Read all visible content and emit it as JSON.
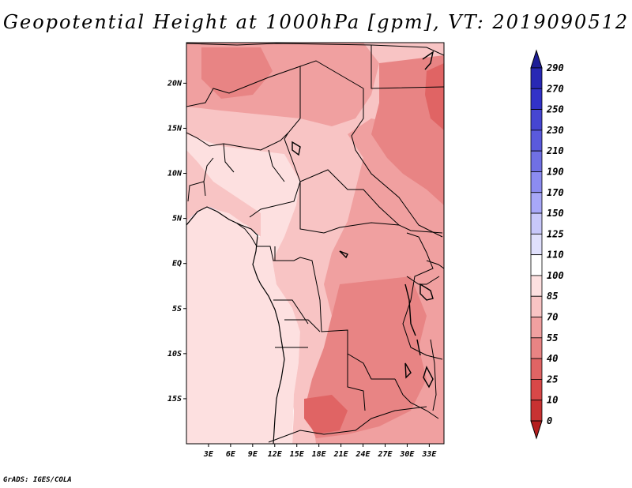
{
  "title": "Geopotential Height at 1000hPa [gpm], VT: 2019090512",
  "credit": "GrADS: IGES/COLA",
  "map": {
    "lat_range": [
      -20,
      24.5
    ],
    "lon_range": [
      0,
      35
    ],
    "lat_ticks": [
      {
        "value": 20,
        "label": "20N"
      },
      {
        "value": 15,
        "label": "15N"
      },
      {
        "value": 10,
        "label": "10N"
      },
      {
        "value": 5,
        "label": "5N"
      },
      {
        "value": 0,
        "label": "EQ"
      },
      {
        "value": -5,
        "label": "5S"
      },
      {
        "value": -10,
        "label": "10S"
      },
      {
        "value": -15,
        "label": "15S"
      }
    ],
    "lon_ticks": [
      {
        "value": 3,
        "label": "3E"
      },
      {
        "value": 6,
        "label": "6E"
      },
      {
        "value": 9,
        "label": "9E"
      },
      {
        "value": 12,
        "label": "12E"
      },
      {
        "value": 15,
        "label": "15E"
      },
      {
        "value": 18,
        "label": "18E"
      },
      {
        "value": 21,
        "label": "21E"
      },
      {
        "value": 24,
        "label": "24E"
      },
      {
        "value": 27,
        "label": "27E"
      },
      {
        "value": 30,
        "label": "30E"
      },
      {
        "value": 33,
        "label": "33E"
      }
    ]
  },
  "colorbar": {
    "labels": [
      "290",
      "270",
      "250",
      "230",
      "210",
      "190",
      "170",
      "150",
      "125",
      "110",
      "100",
      "85",
      "70",
      "55",
      "40",
      "25",
      "10",
      "0"
    ],
    "colors": [
      "#1e1e96",
      "#2828b4",
      "#3232c8",
      "#4646d2",
      "#5a5adc",
      "#7070e4",
      "#8c8cf0",
      "#a8a8f8",
      "#c8c8fa",
      "#e0e0fc",
      "#ffffff",
      "#fde0e0",
      "#f8c4c4",
      "#f0a0a0",
      "#e88484",
      "#e06464",
      "#d84848",
      "#c83232",
      "#b41e1e"
    ]
  },
  "field_colors": {
    "ocean_deep": "#a8a8f8",
    "ocean": "#dcdcfa",
    "white": "#ffffff",
    "pale_pink": "#fde0e0",
    "light_pink": "#f8c4c4",
    "pink": "#f0a0a0",
    "salmon": "#e88484",
    "red": "#e06464"
  }
}
